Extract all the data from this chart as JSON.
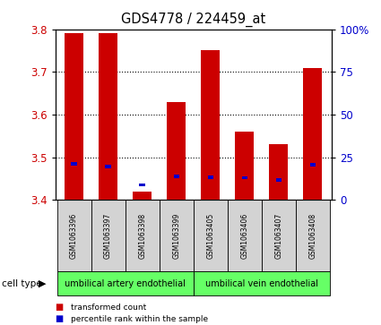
{
  "title": "GDS4778 / 224459_at",
  "samples": [
    "GSM1063396",
    "GSM1063397",
    "GSM1063398",
    "GSM1063399",
    "GSM1063405",
    "GSM1063406",
    "GSM1063407",
    "GSM1063408"
  ],
  "red_values": [
    3.79,
    3.79,
    3.42,
    3.63,
    3.75,
    3.56,
    3.53,
    3.71
  ],
  "blue_values": [
    3.484,
    3.478,
    3.435,
    3.455,
    3.453,
    3.452,
    3.447,
    3.482
  ],
  "blue_bar_height": 0.008,
  "ymin": 3.4,
  "ymax": 3.8,
  "yticks": [
    3.4,
    3.5,
    3.6,
    3.7,
    3.8
  ],
  "right_yticks": [
    0,
    25,
    50,
    75,
    100
  ],
  "right_ytick_labels": [
    "0",
    "25",
    "50",
    "75",
    "100%"
  ],
  "cell_types": [
    {
      "label": "umbilical artery endothelial",
      "start": 0,
      "end": 4,
      "color": "#66FF66"
    },
    {
      "label": "umbilical vein endothelial",
      "start": 4,
      "end": 8,
      "color": "#66FF66"
    }
  ],
  "cell_type_label": "cell type",
  "legend_items": [
    {
      "color": "#CC0000",
      "label": "transformed count"
    },
    {
      "color": "#0000CC",
      "label": "percentile rank within the sample"
    }
  ],
  "bar_color": "#CC0000",
  "blue_color": "#0000CC",
  "bg_color": "#FFFFFF",
  "tick_label_color_left": "#CC0000",
  "tick_label_color_right": "#0000CC",
  "bar_width": 0.55,
  "sample_bg_color": "#D3D3D3"
}
